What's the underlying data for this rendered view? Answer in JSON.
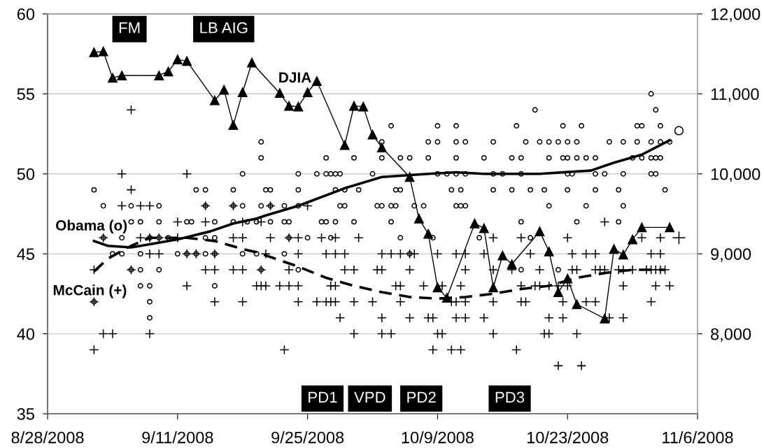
{
  "chart_data": {
    "type": "scatter",
    "xlim": [
      "2008-08-28",
      "2008-11-06"
    ],
    "xticks": [
      {
        "value": "2008-08-28",
        "label": "8/28/2008"
      },
      {
        "value": "2008-09-11",
        "label": "9/11/2008"
      },
      {
        "value": "2008-09-25",
        "label": "9/25/2008"
      },
      {
        "value": "2008-10-09",
        "label": "10/9/2008"
      },
      {
        "value": "2008-10-23",
        "label": "10/23/2008"
      },
      {
        "value": "2008-11-06",
        "label": "11/6/2008"
      }
    ],
    "ylim": [
      35,
      60
    ],
    "yticks": [
      35,
      40,
      45,
      50,
      55,
      60
    ],
    "y2lim": [
      7000,
      12000
    ],
    "y2ticks": [
      {
        "value": 8000,
        "label": "8,000"
      },
      {
        "value": 9000,
        "label": "9,000"
      },
      {
        "value": 10000,
        "label": "10,000"
      },
      {
        "value": 11000,
        "label": "11,000"
      },
      {
        "value": 12000,
        "label": "12,000"
      }
    ],
    "grid": "y",
    "annotations": [
      "FM",
      "LB AIG",
      "PD1",
      "VPD",
      "PD2",
      "PD3"
    ],
    "series": [
      {
        "name": "Obama (o)",
        "marker": "circle",
        "color": "#000000",
        "x": [
          "2008-11-01",
          "2008-10-19T12:00",
          "2008-11-01T12:00",
          "2008-10-04",
          "2008-10-09",
          "2008-10-11",
          "2008-10-17T12:00",
          "2008-10-22T12:00",
          "2008-10-24T12:00",
          "2008-10-30T12:00",
          "2008-10-31",
          "2008-11-02",
          "2008-09-20",
          "2008-10-03",
          "2008-10-08",
          "2008-10-09",
          "2008-10-11",
          "2008-10-12",
          "2008-10-15",
          "2008-10-18T12:00",
          "2008-10-20",
          "2008-10-21",
          "2008-10-22",
          "2008-10-23",
          "2008-10-24",
          "2008-10-27T12:00",
          "2008-10-29",
          "2008-10-30T12:00",
          "2008-11-01",
          "2008-11-02",
          "2008-11-03",
          "2008-09-20",
          "2008-09-27",
          "2008-09-30",
          "2008-10-03",
          "2008-10-05",
          "2008-10-06",
          "2008-10-08",
          "2008-10-11",
          "2008-10-14",
          "2008-10-17",
          "2008-10-18",
          "2008-10-21",
          "2008-10-22T12:00",
          "2008-10-23",
          "2008-10-24",
          "2008-10-25",
          "2008-10-26",
          "2008-10-30",
          "2008-10-31",
          "2008-11-01",
          "2008-11-01T12:00",
          "2008-11-02",
          "2008-09-18",
          "2008-09-24",
          "2008-09-26",
          "2008-09-27",
          "2008-09-27T12:00",
          "2008-09-28",
          "2008-09-28T12:00",
          "2008-10-02",
          "2008-10-09",
          "2008-10-10",
          "2008-10-11",
          "2008-10-12",
          "2008-10-15",
          "2008-10-16",
          "2008-10-18",
          "2008-10-23",
          "2008-10-23T12:00",
          "2008-10-26",
          "2008-10-27",
          "2008-10-29",
          "2008-11-01",
          "2008-11-01T12:00",
          "2008-09-02",
          "2008-09-13",
          "2008-09-14",
          "2008-09-17",
          "2008-09-20T12:00",
          "2008-09-21",
          "2008-09-24",
          "2008-09-28",
          "2008-09-29",
          "2008-09-30T12:00",
          "2008-10-04T12:00",
          "2008-10-05",
          "2008-10-10T12:00",
          "2008-10-11T12:00",
          "2008-10-15",
          "2008-10-17",
          "2008-10-19",
          "2008-10-20T12:00",
          "2008-10-23",
          "2008-10-26",
          "2008-10-28T12:00",
          "2008-11-02T12:00",
          "2008-09-03",
          "2008-09-06",
          "2008-09-09",
          "2008-09-14",
          "2008-09-17",
          "2008-09-18",
          "2008-09-20",
          "2008-09-21",
          "2008-09-22T12:00",
          "2008-09-24",
          "2008-09-28T12:00",
          "2008-09-29",
          "2008-10-02T12:00",
          "2008-10-03",
          "2008-10-04",
          "2008-10-04T12:00",
          "2008-10-06T12:00",
          "2008-10-07T12:00",
          "2008-10-11",
          "2008-10-11T12:00",
          "2008-10-12",
          "2008-10-21",
          "2008-10-25",
          "2008-10-29",
          "2008-09-06",
          "2008-09-07",
          "2008-09-09",
          "2008-09-12",
          "2008-09-12T12:00",
          "2008-09-15",
          "2008-09-17",
          "2008-09-18T12:00",
          "2008-09-19T12:00",
          "2008-09-21",
          "2008-09-22T12:00",
          "2008-09-23",
          "2008-09-26T12:00",
          "2008-09-27",
          "2008-09-28",
          "2008-09-30",
          "2008-10-04",
          "2008-10-18",
          "2008-10-24",
          "2008-10-28T12:00",
          "2008-09-03",
          "2008-09-05",
          "2008-09-08",
          "2008-09-09",
          "2008-09-10",
          "2008-09-14",
          "2008-09-15",
          "2008-09-23",
          "2008-09-25",
          "2008-09-27T12:00",
          "2008-10-05",
          "2008-10-08T12:00",
          "2008-10-13T12:00",
          "2008-10-19",
          "2008-09-04",
          "2008-09-05",
          "2008-09-07",
          "2008-09-11",
          "2008-09-12",
          "2008-09-13",
          "2008-09-14",
          "2008-09-15",
          "2008-09-18",
          "2008-09-19T12:00",
          "2008-09-22T12:00",
          "2008-10-06",
          "2008-09-06",
          "2008-09-07",
          "2008-09-09",
          "2008-09-20",
          "2008-09-24",
          "2008-10-18",
          "2008-10-22",
          "2008-09-07",
          "2008-09-08",
          "2008-09-15",
          "2008-09-02",
          "2008-09-08",
          "2008-09-08"
        ],
        "values": [
          55,
          54,
          54,
          53,
          53,
          53,
          53,
          53,
          53,
          53,
          53,
          53,
          52,
          52,
          52,
          52,
          52,
          52,
          52,
          52,
          52,
          52,
          52,
          52,
          52,
          52,
          52,
          52,
          52,
          52,
          52,
          51,
          51,
          51,
          51,
          51,
          51,
          51,
          51,
          51,
          51,
          51,
          51,
          51,
          51,
          51,
          51,
          51,
          51,
          51,
          51,
          51,
          51,
          50,
          50,
          50,
          50,
          50,
          50,
          50,
          50,
          50,
          50,
          50,
          50,
          50,
          50,
          50,
          50,
          50,
          50,
          50,
          50,
          50,
          50,
          49,
          49,
          49,
          49,
          49,
          49,
          49,
          49,
          49,
          49,
          49,
          49,
          49,
          49,
          49,
          49,
          49,
          49,
          49,
          49,
          49,
          49,
          48,
          48,
          48,
          48,
          48,
          48,
          48,
          48,
          48,
          48,
          48,
          48,
          48,
          48,
          48,
          48,
          48,
          48,
          48,
          48,
          48,
          48,
          48,
          48,
          47,
          47,
          47,
          47,
          47,
          47,
          47,
          47,
          47,
          47,
          47,
          47,
          47,
          47,
          47,
          47,
          47,
          47,
          47,
          47,
          46,
          46,
          46,
          46,
          46,
          46,
          46,
          46,
          46,
          46,
          46,
          46,
          46,
          46,
          45,
          45,
          45,
          45,
          45,
          45,
          45,
          45,
          45,
          45,
          45,
          45,
          44,
          44,
          44,
          44,
          44,
          44,
          44,
          43,
          43,
          43,
          42,
          42,
          41
        ]
      },
      {
        "name": "McCain (+)",
        "marker": "cross",
        "color": "#000000",
        "x": [
          "2008-09-06",
          "2008-09-05",
          "2008-09-12",
          "2008-09-06",
          "2008-09-05",
          "2008-09-07",
          "2008-09-08",
          "2008-09-14",
          "2008-09-17",
          "2008-09-21",
          "2008-09-25",
          "2008-09-11",
          "2008-09-14",
          "2008-09-18",
          "2008-09-20",
          "2008-10-27",
          "2008-09-03",
          "2008-09-07",
          "2008-09-08",
          "2008-09-09",
          "2008-09-11",
          "2008-09-17",
          "2008-09-18",
          "2008-09-21",
          "2008-09-23",
          "2008-09-24",
          "2008-09-26T12:00",
          "2008-09-28",
          "2008-09-30T12:00",
          "2008-10-15",
          "2008-10-18",
          "2008-10-23",
          "2008-10-31",
          "2008-11-02",
          "2008-09-08",
          "2008-09-09",
          "2008-09-12",
          "2008-09-13",
          "2008-09-15",
          "2008-09-20T12:00",
          "2008-09-24",
          "2008-09-27",
          "2008-09-28",
          "2008-09-29",
          "2008-10-03",
          "2008-10-04",
          "2008-10-05",
          "2008-10-06",
          "2008-10-06T12:00",
          "2008-10-09",
          "2008-10-11",
          "2008-10-12",
          "2008-10-14",
          "2008-10-19",
          "2008-10-23T12:00",
          "2008-10-25",
          "2008-10-26",
          "2008-11-01",
          "2008-11-02",
          "2008-09-02",
          "2008-09-06",
          "2008-09-14",
          "2008-09-15",
          "2008-09-17",
          "2008-09-18",
          "2008-09-20",
          "2008-09-23",
          "2008-09-29",
          "2008-09-30",
          "2008-10-02T12:00",
          "2008-10-03",
          "2008-10-06",
          "2008-10-12",
          "2008-10-15",
          "2008-10-17",
          "2008-10-20",
          "2008-10-23T12:00",
          "2008-10-24",
          "2008-10-26",
          "2008-10-26T12:00",
          "2008-10-27",
          "2008-10-28T12:00",
          "2008-10-29",
          "2008-10-30",
          "2008-10-31T12:00",
          "2008-11-01",
          "2008-11-01T12:00",
          "2008-11-02",
          "2008-11-02T12:00",
          "2008-09-12",
          "2008-09-19T12:00",
          "2008-09-20",
          "2008-09-20T12:00",
          "2008-09-22",
          "2008-09-23",
          "2008-09-24",
          "2008-09-27T12:00",
          "2008-09-28",
          "2008-10-04T12:00",
          "2008-10-05",
          "2008-10-07T12:00",
          "2008-10-09T12:00",
          "2008-10-11T12:00",
          "2008-10-18",
          "2008-10-19T12:00",
          "2008-10-20",
          "2008-10-21",
          "2008-10-22",
          "2008-10-23",
          "2008-10-29",
          "2008-11-01T12:00",
          "2008-11-03",
          "2008-09-02",
          "2008-09-15",
          "2008-09-18",
          "2008-09-24",
          "2008-09-26",
          "2008-09-27",
          "2008-09-27T12:00",
          "2008-09-28",
          "2008-09-30",
          "2008-10-02",
          "2008-10-05",
          "2008-10-10T12:00",
          "2008-10-11",
          "2008-10-12",
          "2008-10-15",
          "2008-10-18",
          "2008-10-18T12:00",
          "2008-10-22T12:00",
          "2008-10-25",
          "2008-10-26",
          "2008-11-01",
          "2008-09-28T12:00",
          "2008-10-03",
          "2008-10-06",
          "2008-10-08",
          "2008-10-08T12:00",
          "2008-10-11",
          "2008-10-12",
          "2008-10-14",
          "2008-10-21",
          "2008-10-22T12:00",
          "2008-10-27T12:00",
          "2008-10-29",
          "2008-09-03",
          "2008-09-04",
          "2008-09-08",
          "2008-09-30",
          "2008-10-03",
          "2008-10-04",
          "2008-10-09",
          "2008-10-09T12:00",
          "2008-10-15",
          "2008-10-20T12:00",
          "2008-10-21",
          "2008-10-24",
          "2008-09-02",
          "2008-09-22T12:00",
          "2008-10-08T12:00",
          "2008-10-10T12:00",
          "2008-10-11T12:00",
          "2008-10-17T12:00",
          "2008-10-22",
          "2008-10-24T12:00"
        ],
        "values": [
          54,
          50,
          50,
          49,
          48,
          48,
          48,
          48,
          48,
          48,
          48,
          47,
          47,
          47,
          47,
          47,
          46,
          46,
          46,
          46,
          46,
          46,
          46,
          46,
          46,
          46,
          46,
          46,
          46,
          46,
          46,
          46,
          46,
          46,
          45,
          45,
          45,
          45,
          45,
          45,
          45,
          45,
          45,
          45,
          45,
          45,
          45,
          45,
          45,
          45,
          45,
          45,
          45,
          45,
          45,
          45,
          45,
          45,
          45,
          44,
          44,
          44,
          44,
          44,
          44,
          44,
          44,
          44,
          44,
          44,
          44,
          44,
          44,
          44,
          44,
          44,
          44,
          44,
          44,
          44,
          44,
          44,
          44,
          44,
          44,
          44,
          44,
          44,
          44,
          43,
          43,
          43,
          43,
          43,
          43,
          43,
          43,
          43,
          43,
          43,
          43,
          43,
          43,
          43,
          43,
          43,
          43,
          43,
          43,
          43,
          43,
          43,
          42,
          42,
          42,
          42,
          42,
          42,
          42,
          42,
          42,
          42,
          42,
          42,
          42,
          42,
          42,
          42,
          42,
          42,
          42,
          42,
          42,
          41,
          41,
          41,
          41,
          41,
          41,
          41,
          41,
          41,
          41,
          41,
          41,
          40,
          40,
          40,
          40,
          40,
          40,
          40,
          40,
          40,
          40,
          40,
          40,
          39,
          39,
          39,
          39,
          39,
          39,
          38,
          38
        ]
      },
      {
        "type": "line",
        "marker": "none",
        "line_style": "solid",
        "color": "#000000",
        "x": [
          "2008-09-02",
          "2008-09-03T12:00",
          "2008-09-06",
          "2008-09-08",
          "2008-09-11",
          "2008-09-14T12:00",
          "2008-09-17",
          "2008-09-19T12:00",
          "2008-09-20T12:00",
          "2008-09-24",
          "2008-09-29",
          "2008-10-03",
          "2008-10-08",
          "2008-10-11",
          "2008-10-14",
          "2008-10-20",
          "2008-10-22T12:00",
          "2008-10-25T12:00",
          "2008-10-28",
          "2008-10-31",
          "2008-11-03"
        ],
        "values": [
          45.8,
          45.5,
          45.4,
          45.6,
          45.9,
          46.4,
          46.9,
          47.2,
          47.4,
          48.0,
          49.1,
          49.8,
          50.0,
          50.1,
          50.0,
          50.0,
          50.1,
          50.2,
          50.7,
          51.2,
          52.1
        ]
      },
      {
        "type": "line",
        "marker": "none",
        "line_style": "dashed",
        "color": "#000000",
        "x": [
          "2008-09-02",
          "2008-09-03T12:00",
          "2008-09-06",
          "2008-09-08",
          "2008-09-12",
          "2008-09-15",
          "2008-09-18",
          "2008-09-19T12:00",
          "2008-09-21T12:00",
          "2008-09-24",
          "2008-09-27",
          "2008-09-30",
          "2008-10-03",
          "2008-10-06",
          "2008-10-09",
          "2008-10-12",
          "2008-10-15",
          "2008-10-16",
          "2008-10-18",
          "2008-10-21",
          "2008-10-24",
          "2008-10-27",
          "2008-10-30",
          "2008-11-02T12:00"
        ],
        "values": [
          43.9,
          44.7,
          45.5,
          46.0,
          46.0,
          45.8,
          45.3,
          45.1,
          44.7,
          44.2,
          43.5,
          43.0,
          42.6,
          42.3,
          42.2,
          42.3,
          42.5,
          42.6,
          42.8,
          43.0,
          43.5,
          43.8,
          44.0,
          44.0
        ]
      },
      {
        "name": "DJIA",
        "type": "line",
        "axis": "y2",
        "marker": "triangle",
        "line_style": "solid",
        "color": "#000000",
        "x": [
          "2008-09-02",
          "2008-09-03",
          "2008-09-04",
          "2008-09-05",
          "2008-09-09",
          "2008-09-10",
          "2008-09-11",
          "2008-09-12",
          "2008-09-15",
          "2008-09-16",
          "2008-09-17",
          "2008-09-18",
          "2008-09-19",
          "2008-09-22",
          "2008-09-23",
          "2008-09-24",
          "2008-09-25",
          "2008-09-26",
          "2008-09-29",
          "2008-09-30",
          "2008-10-01",
          "2008-10-02",
          "2008-10-03",
          "2008-10-06",
          "2008-10-07",
          "2008-10-08",
          "2008-10-09",
          "2008-10-10",
          "2008-10-13",
          "2008-10-14",
          "2008-10-15",
          "2008-10-16",
          "2008-10-17",
          "2008-10-20",
          "2008-10-21",
          "2008-10-22",
          "2008-10-23",
          "2008-10-24",
          "2008-10-27",
          "2008-10-28",
          "2008-10-29",
          "2008-10-30",
          "2008-10-31",
          "2008-11-03"
        ],
        "values": [
          11520,
          11530,
          11200,
          11230,
          11230,
          11280,
          11430,
          11410,
          10920,
          11050,
          10610,
          11020,
          11390,
          11010,
          10850,
          10840,
          11020,
          11160,
          10360,
          10850,
          10840,
          10490,
          10330,
          9960,
          9440,
          9250,
          8580,
          8450,
          9380,
          9320,
          8580,
          8980,
          8870,
          9280,
          9030,
          8520,
          8690,
          8370,
          8190,
          9060,
          8990,
          9180,
          9330,
          9330
        ]
      },
      {
        "marker": "circle",
        "color": "#000000",
        "x": [
          "2008-11-04"
        ],
        "values": [
          52.7
        ]
      },
      {
        "marker": "cross",
        "color": "#000000",
        "x": [
          "2008-11-04"
        ],
        "values": [
          46
        ]
      }
    ]
  }
}
